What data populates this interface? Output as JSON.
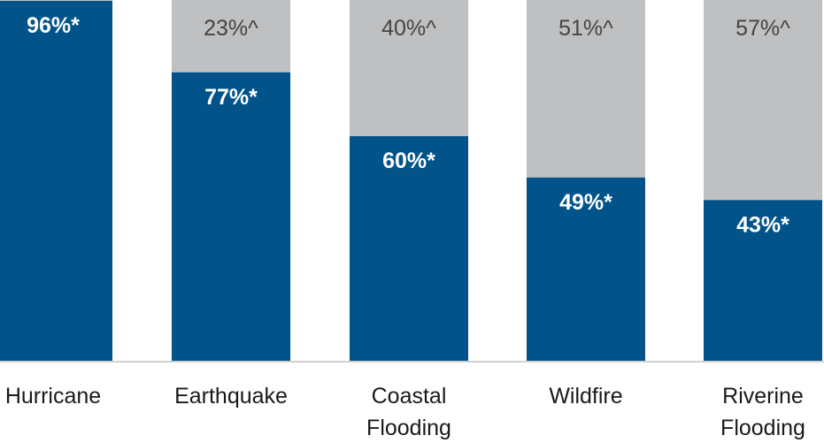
{
  "chart_data": {
    "type": "bar",
    "stacked": true,
    "categories": [
      "Hurricane",
      "Earthquake",
      "Coastal Flooding",
      "Wildfire",
      "Riverine Flooding"
    ],
    "category_label_lines": [
      [
        "Hurricane"
      ],
      [
        "Earthquake"
      ],
      [
        "Coastal",
        "Flooding"
      ],
      [
        "Wildfire"
      ],
      [
        "Riverine",
        "Flooding"
      ]
    ],
    "series": [
      {
        "values": [
          96,
          77,
          60,
          49,
          43
        ],
        "labels": [
          "96%*",
          "77%*",
          "60%*",
          "49%*",
          "43%*"
        ]
      },
      {
        "values": [
          4,
          23,
          40,
          51,
          57
        ],
        "labels": [
          "",
          "23%^",
          "40%^",
          "51%^",
          "57%^"
        ]
      }
    ],
    "ylim": [
      0,
      100
    ],
    "grid": false,
    "colors": {
      "primary": "#02538a",
      "secondary": "#bfc0c2",
      "axis": "#d0d0d0"
    }
  }
}
